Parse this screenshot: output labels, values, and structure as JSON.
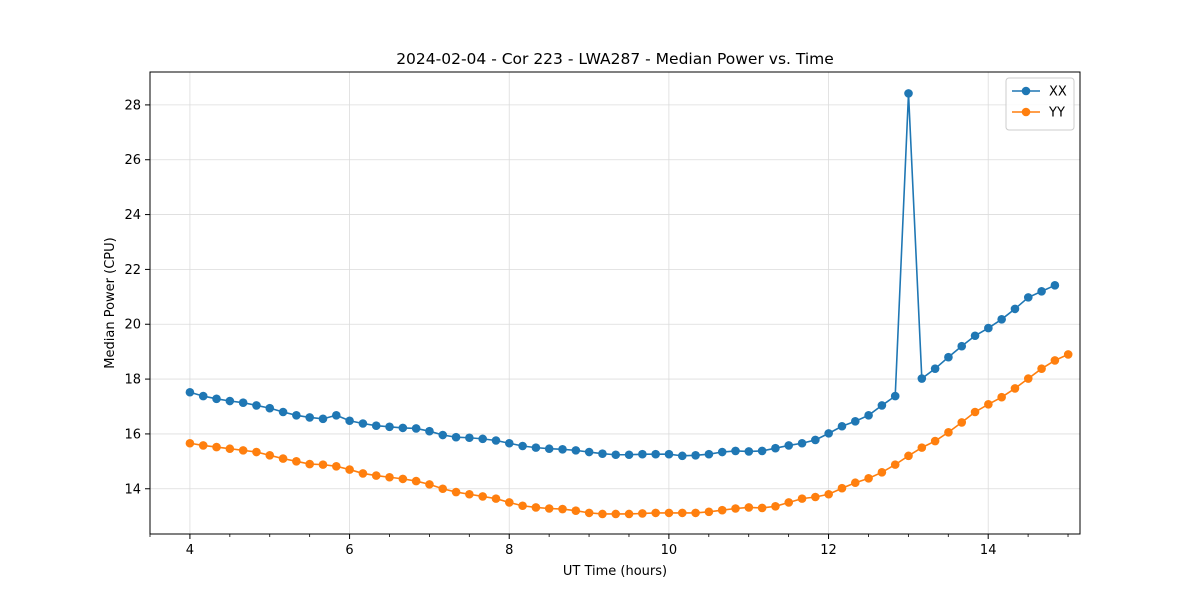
{
  "chart_data": {
    "type": "line",
    "title": "2024-02-04 - Cor 223 - LWA287 - Median Power vs. Time",
    "xlabel": "UT Time (hours)",
    "ylabel": "Median Power (CPU)",
    "xlim": [
      3.5,
      15.15
    ],
    "ylim": [
      12.35,
      29.2
    ],
    "xticks": [
      4,
      6,
      8,
      10,
      12,
      14
    ],
    "yticks": [
      14,
      16,
      18,
      20,
      22,
      24,
      26,
      28
    ],
    "grid": true,
    "legend_position": "top-right",
    "x_step": 0.1667,
    "x_start": 4.0,
    "series": [
      {
        "name": "XX",
        "color": "#1f77b4",
        "values": [
          17.52,
          17.38,
          17.28,
          17.2,
          17.14,
          17.04,
          16.94,
          16.8,
          16.68,
          16.6,
          16.55,
          16.68,
          16.48,
          16.38,
          16.3,
          16.26,
          16.22,
          16.2,
          16.1,
          15.96,
          15.88,
          15.86,
          15.82,
          15.76,
          15.66,
          15.56,
          15.5,
          15.46,
          15.44,
          15.4,
          15.34,
          15.28,
          15.24,
          15.24,
          15.26,
          15.26,
          15.26,
          15.2,
          15.22,
          15.26,
          15.34,
          15.38,
          15.36,
          15.38,
          15.48,
          15.58,
          15.66,
          15.78,
          16.02,
          16.28,
          16.46,
          16.68,
          17.04,
          17.38,
          28.42,
          18.02,
          18.38,
          18.8,
          19.2,
          19.58,
          19.86,
          20.18,
          20.56,
          20.98,
          21.2,
          21.42
        ]
      },
      {
        "name": "YY",
        "color": "#ff7f0e",
        "values": [
          15.66,
          15.58,
          15.52,
          15.46,
          15.4,
          15.34,
          15.22,
          15.1,
          15.0,
          14.9,
          14.88,
          14.82,
          14.7,
          14.56,
          14.48,
          14.42,
          14.36,
          14.28,
          14.16,
          14.0,
          13.88,
          13.8,
          13.72,
          13.64,
          13.5,
          13.38,
          13.32,
          13.28,
          13.26,
          13.2,
          13.12,
          13.08,
          13.08,
          13.08,
          13.1,
          13.12,
          13.12,
          13.12,
          13.12,
          13.16,
          13.22,
          13.28,
          13.32,
          13.3,
          13.36,
          13.5,
          13.64,
          13.7,
          13.8,
          14.02,
          14.22,
          14.38,
          14.6,
          14.88,
          15.2,
          15.5,
          15.74,
          16.06,
          16.42,
          16.8,
          17.08,
          17.34,
          17.66,
          18.02,
          18.38,
          18.68,
          18.9
        ]
      }
    ]
  }
}
